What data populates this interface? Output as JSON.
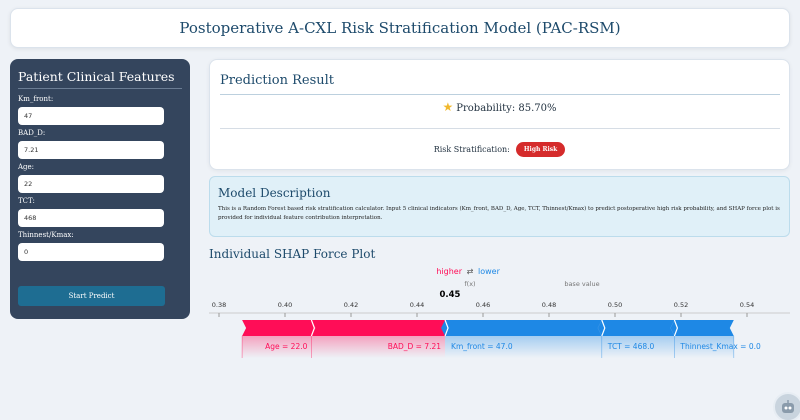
{
  "header": {
    "title": "Postoperative A-CXL Risk Stratification Model (PAC-RSM)"
  },
  "sidebar": {
    "title": "Patient Clinical Features",
    "fields": [
      {
        "label": "Km_front:",
        "value": "47"
      },
      {
        "label": "BAD_D:",
        "value": "7.21"
      },
      {
        "label": "Age:",
        "value": "22"
      },
      {
        "label": "TCT:",
        "value": "468"
      },
      {
        "label": "Thinnest/Kmax:",
        "value": "0"
      }
    ],
    "button_label": "Start Predict"
  },
  "result": {
    "title": "Prediction Result",
    "probability_text": "Probability: 85.70%",
    "risk_label": "Risk Stratification:",
    "risk_badge": "High Risk",
    "star_icon": "star-icon"
  },
  "description": {
    "title": "Model Description",
    "text": "This is a Random Forest based risk stratification calculator. Input 5 clinical indicators (Km_front, BAD_D, Age, TCT, Thinnest/Kmax) to predict postoperative high risk probability, and SHAP force plot is provided for individual feature contribution interpretation."
  },
  "shap": {
    "title": "Individual SHAP Force Plot",
    "higher_label": "higher",
    "arrows_glyph": "⇄",
    "lower_label": "lower",
    "fx_label": "f(x)",
    "fx_value": "0.45",
    "base_label": "base value",
    "colors": {
      "positive": "#ff0d57",
      "negative": "#1e88e5"
    }
  },
  "chart_data": {
    "type": "force",
    "xlim": [
      0.38,
      0.54
    ],
    "ticks": [
      "0.38",
      "0.40",
      "0.42",
      "0.44",
      "0.46",
      "0.48",
      "0.50",
      "0.52",
      "0.54"
    ],
    "output_value": 0.45,
    "base_value": 0.49,
    "positive_features": [
      {
        "name": "Age = 22.0",
        "from": 0.387,
        "to": 0.408
      },
      {
        "name": "BAD_D = 7.21",
        "from": 0.408,
        "to": 0.4485
      }
    ],
    "negative_features": [
      {
        "name": "Km_front = 47.0",
        "from": 0.4485,
        "to": 0.496
      },
      {
        "name": "TCT = 468.0",
        "from": 0.496,
        "to": 0.518
      },
      {
        "name": "Thinnest_Kmax = 0.0",
        "from": 0.518,
        "to": 0.536
      }
    ]
  }
}
